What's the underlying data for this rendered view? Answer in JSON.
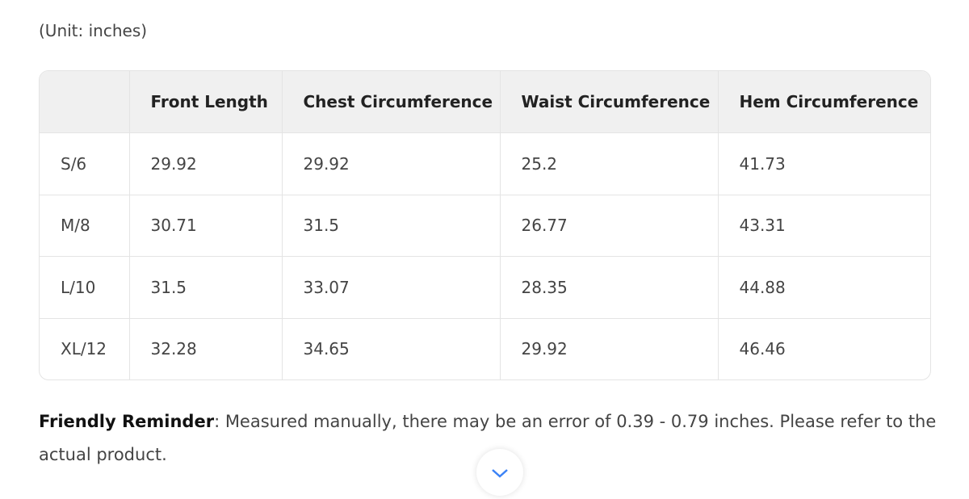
{
  "unit_note": "(Unit: inches)",
  "table": {
    "header": [
      "",
      "Front Length",
      "Chest Circumference",
      "Waist Circumference",
      "Hem Circumference"
    ],
    "rows": [
      [
        "S/6",
        "29.92",
        "29.92",
        "25.2",
        "41.73"
      ],
      [
        "M/8",
        "30.71",
        "31.5",
        "26.77",
        "43.31"
      ],
      [
        "L/10",
        "31.5",
        "33.07",
        "28.35",
        "44.88"
      ],
      [
        "XL/12",
        "32.28",
        "34.65",
        "29.92",
        "46.46"
      ]
    ]
  },
  "reminder": {
    "label": "Friendly Reminder",
    "text": ": Measured manually, there may be an error of 0.39 - 0.79 inches. Please refer to the actual product."
  }
}
